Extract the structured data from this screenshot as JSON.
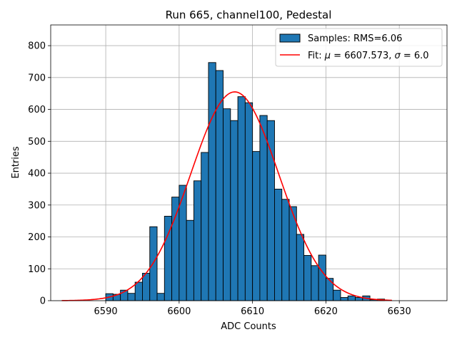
{
  "chart_data": {
    "type": "bar",
    "title": "Run 665, channel100, Pedestal",
    "xlabel": "ADC Counts",
    "ylabel": "Entries",
    "xlim": [
      6582.5,
      6636.5
    ],
    "ylim": [
      0,
      865
    ],
    "xticks": [
      6590,
      6600,
      6610,
      6620,
      6630
    ],
    "yticks": [
      0,
      100,
      200,
      300,
      400,
      500,
      600,
      700,
      800
    ],
    "grid": true,
    "legend_position": "top-right",
    "histogram": {
      "name": "Samples: RMS=6.06",
      "color": "#1f77b4",
      "edgecolor": "#000000",
      "bins": [
        {
          "x0": 6590.0,
          "x1": 6591.0,
          "count": 22
        },
        {
          "x0": 6591.0,
          "x1": 6592.0,
          "count": 20
        },
        {
          "x0": 6592.0,
          "x1": 6593.0,
          "count": 33
        },
        {
          "x0": 6593.0,
          "x1": 6594.0,
          "count": 23
        },
        {
          "x0": 6594.0,
          "x1": 6595.0,
          "count": 58
        },
        {
          "x0": 6595.0,
          "x1": 6596.0,
          "count": 86
        },
        {
          "x0": 6596.0,
          "x1": 6597.0,
          "count": 232
        },
        {
          "x0": 6597.0,
          "x1": 6598.0,
          "count": 23
        },
        {
          "x0": 6598.0,
          "x1": 6599.0,
          "count": 265
        },
        {
          "x0": 6599.0,
          "x1": 6600.0,
          "count": 325
        },
        {
          "x0": 6600.0,
          "x1": 6601.0,
          "count": 362
        },
        {
          "x0": 6601.0,
          "x1": 6602.0,
          "count": 252
        },
        {
          "x0": 6602.0,
          "x1": 6603.0,
          "count": 376
        },
        {
          "x0": 6603.0,
          "x1": 6604.0,
          "count": 465
        },
        {
          "x0": 6604.0,
          "x1": 6605.0,
          "count": 747
        },
        {
          "x0": 6605.0,
          "x1": 6606.0,
          "count": 722
        },
        {
          "x0": 6606.0,
          "x1": 6607.0,
          "count": 602
        },
        {
          "x0": 6607.0,
          "x1": 6608.0,
          "count": 565
        },
        {
          "x0": 6608.0,
          "x1": 6609.0,
          "count": 640
        },
        {
          "x0": 6609.0,
          "x1": 6610.0,
          "count": 621
        },
        {
          "x0": 6610.0,
          "x1": 6611.0,
          "count": 468
        },
        {
          "x0": 6611.0,
          "x1": 6612.0,
          "count": 581
        },
        {
          "x0": 6612.0,
          "x1": 6613.0,
          "count": 565
        },
        {
          "x0": 6613.0,
          "x1": 6614.0,
          "count": 350
        },
        {
          "x0": 6614.0,
          "x1": 6615.0,
          "count": 318
        },
        {
          "x0": 6615.0,
          "x1": 6616.0,
          "count": 295
        },
        {
          "x0": 6616.0,
          "x1": 6617.0,
          "count": 208
        },
        {
          "x0": 6617.0,
          "x1": 6618.0,
          "count": 142
        },
        {
          "x0": 6618.0,
          "x1": 6619.0,
          "count": 110
        },
        {
          "x0": 6619.0,
          "x1": 6620.0,
          "count": 143
        },
        {
          "x0": 6620.0,
          "x1": 6621.0,
          "count": 70
        },
        {
          "x0": 6621.0,
          "x1": 6622.0,
          "count": 33
        },
        {
          "x0": 6622.0,
          "x1": 6623.0,
          "count": 10
        },
        {
          "x0": 6623.0,
          "x1": 6624.0,
          "count": 15
        },
        {
          "x0": 6624.0,
          "x1": 6625.0,
          "count": 10
        },
        {
          "x0": 6625.0,
          "x1": 6626.0,
          "count": 15
        },
        {
          "x0": 6626.0,
          "x1": 6627.0,
          "count": 3
        },
        {
          "x0": 6627.0,
          "x1": 6628.0,
          "count": 5
        }
      ]
    },
    "fit": {
      "name": "Fit: μ = 6607.573, σ = 6.0",
      "legend_prefix": "Fit: ",
      "mu_symbol": "μ",
      "mu_text": " = 6607.573, ",
      "sigma_symbol": "σ",
      "sigma_text": " = 6.0",
      "color": "#ff0000",
      "mu": 6607.573,
      "sigma": 6.0,
      "amplitude": 655,
      "x_range": [
        6584,
        6629
      ]
    }
  }
}
